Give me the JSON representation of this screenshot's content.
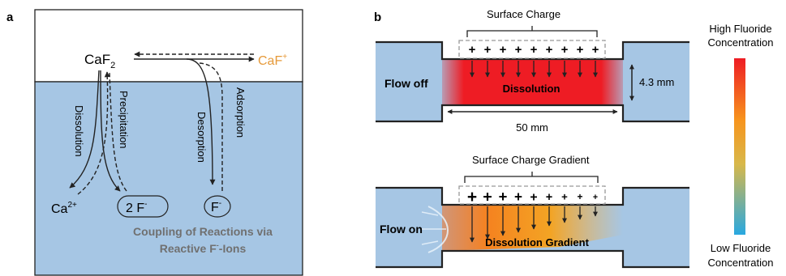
{
  "panel_a": {
    "label": "a",
    "crystal": "CaF",
    "crystal_sub": "2",
    "surface_ion": "CaF",
    "surface_ion_sup": "+",
    "dissolution": "Dissolution",
    "precipitation": "Precipitation",
    "desorption": "Desorption",
    "adsorption": "Adsorption",
    "calcium": "Ca",
    "calcium_sup": "2+",
    "two_fluoride": "2 F",
    "fluoride": "F",
    "ion_sup": "-",
    "caption_line1": "Coupling of Reactions via",
    "caption_line2": "Reactive F",
    "caption_line2_sup": "-",
    "caption_line2_end": "-Ions"
  },
  "panel_b": {
    "label": "b",
    "top": {
      "surface_label": "Surface Charge",
      "flow_label": "Flow off",
      "zone_label": "Dissolution",
      "height_label": "4.3 mm",
      "length_label": "50 mm",
      "charge_symbol": "+",
      "charge_count": 9
    },
    "bottom": {
      "surface_label": "Surface Charge Gradient",
      "flow_label": "Flow on",
      "zone_label": "Dissolution Gradient",
      "charge_symbol": "+",
      "charge_count": 9
    },
    "colorbar": {
      "high_line1": "High Fluoride",
      "high_line2": "Concentration",
      "low_line1": "Low Fluoride",
      "low_line2": "Concentration"
    }
  },
  "colors": {
    "water": "#a6c6e4",
    "outline": "#222222",
    "surface_ion": "#e69a3a",
    "caption": "#707070",
    "dissolution_red": "#ee1c24"
  }
}
